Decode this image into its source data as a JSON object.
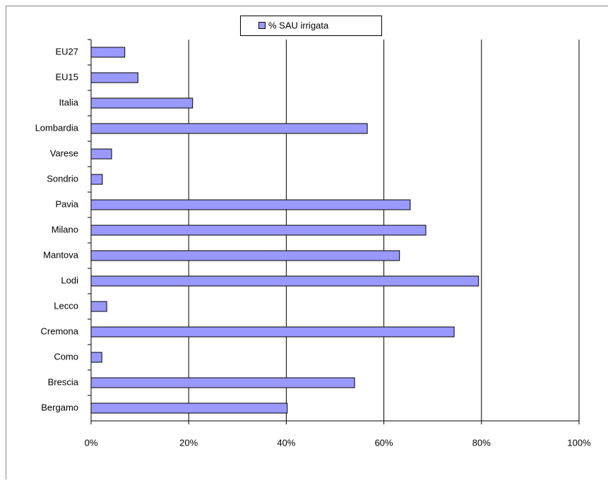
{
  "chart_data": {
    "type": "bar",
    "orientation": "horizontal",
    "categories": [
      "EU27",
      "EU15",
      "Italia",
      "Lombardia",
      "Varese",
      "Sondrio",
      "Pavia",
      "Milano",
      "Mantova",
      "Lodi",
      "Lecco",
      "Cremona",
      "Como",
      "Brescia",
      "Bergamo"
    ],
    "series": [
      {
        "name": "% SAU irrigata",
        "color": "#9999ff",
        "values": [
          6.9,
          9.6,
          20.8,
          56.6,
          4.2,
          2.3,
          65.4,
          68.6,
          63.2,
          79.4,
          3.2,
          74.4,
          2.2,
          54.0,
          40.2
        ]
      }
    ],
    "xlim": [
      0,
      100
    ],
    "xticks": [
      {
        "value": 0,
        "label": "0%"
      },
      {
        "value": 20,
        "label": "20%"
      },
      {
        "value": 40,
        "label": "40%"
      },
      {
        "value": 60,
        "label": "60%"
      },
      {
        "value": 80,
        "label": "80%"
      },
      {
        "value": 100,
        "label": "100%"
      }
    ],
    "grid": true,
    "legend": "top"
  }
}
